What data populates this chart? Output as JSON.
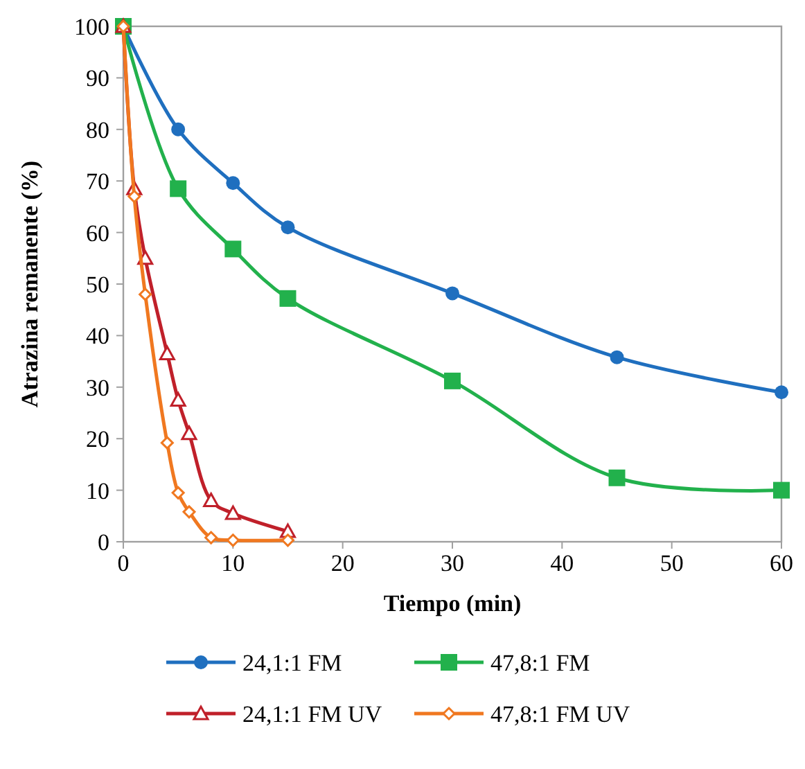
{
  "chart_data": {
    "type": "line",
    "xlabel": "Tiempo (min)",
    "ylabel": "Atrazina remanente (%)",
    "xlim": [
      0,
      60
    ],
    "xticks": [
      0,
      10,
      20,
      30,
      40,
      50,
      60
    ],
    "ylim": [
      0,
      100
    ],
    "yticks": [
      0,
      10,
      20,
      30,
      40,
      50,
      60,
      70,
      80,
      90,
      100
    ],
    "grid": false,
    "legend": "bottom",
    "series": [
      {
        "name": "24,1:1 FM",
        "color": "#1f6fbf",
        "marker": "circle",
        "x": [
          0,
          5,
          10,
          15,
          30,
          45,
          60
        ],
        "values": [
          100,
          80,
          69.6,
          61,
          48.2,
          35.8,
          29
        ]
      },
      {
        "name": "47,8:1 FM",
        "color": "#22b14c",
        "marker": "square",
        "x": [
          0,
          5,
          10,
          15,
          30,
          45,
          60
        ],
        "values": [
          100,
          68.5,
          56.8,
          47.2,
          31.2,
          12.4,
          10
        ]
      },
      {
        "name": "24,1:1 FM UV",
        "color": "#c0202a",
        "marker": "triangle",
        "x": [
          0,
          1,
          2,
          4,
          5,
          6,
          8,
          10,
          15
        ],
        "values": [
          100,
          68.5,
          55,
          36.5,
          27.5,
          21,
          8,
          5.5,
          2
        ]
      },
      {
        "name": "47,8:1 FM UV",
        "color": "#f07820",
        "marker": "diamond",
        "x": [
          0,
          1,
          2,
          4,
          5,
          6,
          8,
          10,
          15
        ],
        "values": [
          100,
          67,
          48,
          19.2,
          9.5,
          5.8,
          0.8,
          0.3,
          0.3
        ]
      }
    ]
  }
}
